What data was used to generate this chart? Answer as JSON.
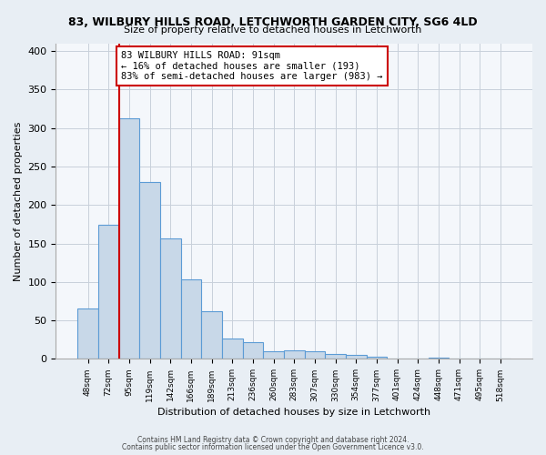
{
  "title": "83, WILBURY HILLS ROAD, LETCHWORTH GARDEN CITY, SG6 4LD",
  "subtitle": "Size of property relative to detached houses in Letchworth",
  "xlabel": "Distribution of detached houses by size in Letchworth",
  "ylabel": "Number of detached properties",
  "bar_labels": [
    "48sqm",
    "72sqm",
    "95sqm",
    "119sqm",
    "142sqm",
    "166sqm",
    "189sqm",
    "213sqm",
    "236sqm",
    "260sqm",
    "283sqm",
    "307sqm",
    "330sqm",
    "354sqm",
    "377sqm",
    "401sqm",
    "424sqm",
    "448sqm",
    "471sqm",
    "495sqm",
    "518sqm"
  ],
  "bar_values": [
    65,
    174,
    313,
    230,
    157,
    103,
    62,
    27,
    22,
    10,
    11,
    10,
    7,
    5,
    3,
    1,
    0,
    2,
    0,
    0,
    1
  ],
  "bar_color": "#c8d8e8",
  "bar_edge_color": "#5b9bd5",
  "vline_x": 1.5,
  "vline_color": "#cc0000",
  "ylim": [
    0,
    410
  ],
  "annotation_text": "83 WILBURY HILLS ROAD: 91sqm\n← 16% of detached houses are smaller (193)\n83% of semi-detached houses are larger (983) →",
  "annotation_box_color": "white",
  "annotation_box_edge_color": "#cc0000",
  "footer_line1": "Contains HM Land Registry data © Crown copyright and database right 2024.",
  "footer_line2": "Contains public sector information licensed under the Open Government Licence v3.0.",
  "background_color": "#e8eef4",
  "plot_background_color": "#f4f7fb",
  "grid_color": "#c8d0da"
}
